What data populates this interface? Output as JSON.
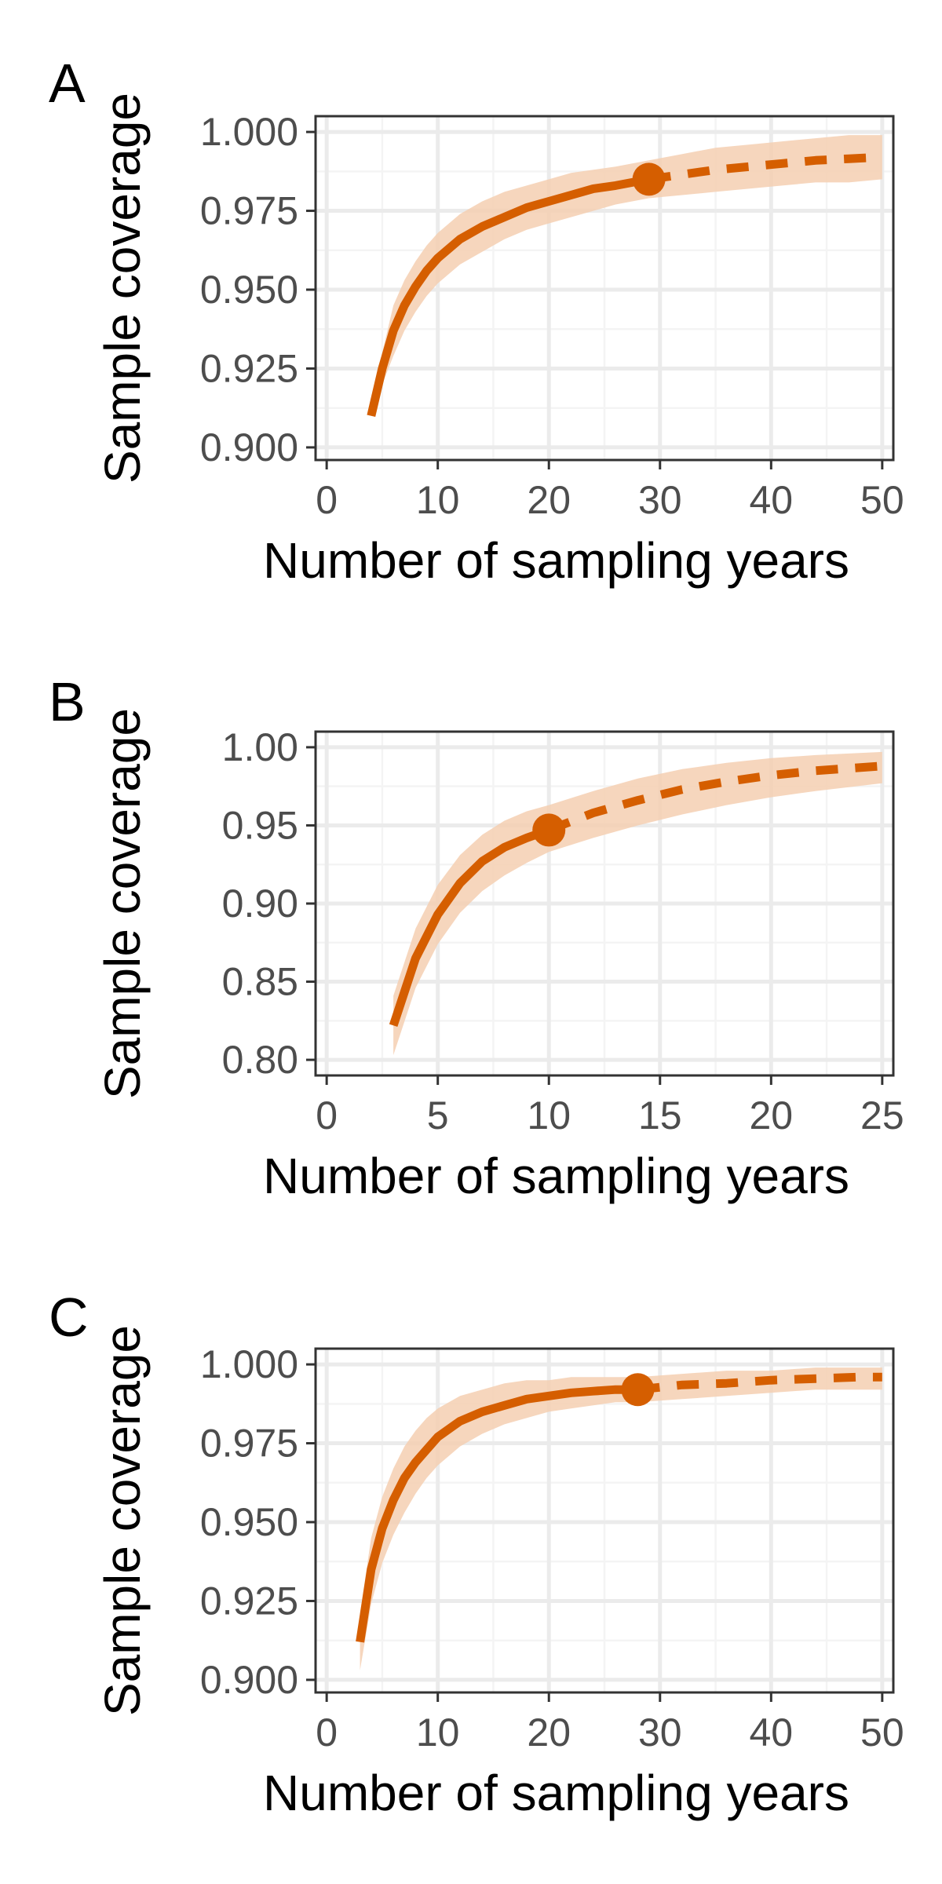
{
  "colors": {
    "line": "#D55E00",
    "ribbon": "#F5CFB2",
    "grid_major": "#EBEBEB",
    "grid_minor": "#F4F4F4",
    "frame": "#333333",
    "tick_text": "#4D4D4D"
  },
  "chart_data": [
    {
      "type": "line",
      "panel_label": "A",
      "xlabel": "Number of sampling years",
      "ylabel": "Sample coverage",
      "xlim": [
        -1,
        51
      ],
      "ylim": [
        0.896,
        1.005
      ],
      "x_ticks": [
        0,
        10,
        20,
        30,
        40,
        50
      ],
      "x_tick_labels": [
        "0",
        "10",
        "20",
        "30",
        "40",
        "50"
      ],
      "y_ticks": [
        0.9,
        0.925,
        0.95,
        0.975,
        1.0
      ],
      "y_tick_labels": [
        "0.900",
        "0.925",
        "0.950",
        "0.975",
        "1.000"
      ],
      "grid": true,
      "observed_point": {
        "x": 29,
        "y": 0.985
      },
      "series": [
        {
          "style": "solid",
          "x": [
            4,
            5,
            6,
            7,
            8,
            9,
            10,
            12,
            14,
            16,
            18,
            20,
            22,
            24,
            26,
            29
          ],
          "y": [
            0.91,
            0.925,
            0.937,
            0.945,
            0.951,
            0.956,
            0.96,
            0.966,
            0.97,
            0.973,
            0.976,
            0.978,
            0.98,
            0.982,
            0.983,
            0.985
          ],
          "lower": [
            0.91,
            0.92,
            0.929,
            0.937,
            0.943,
            0.948,
            0.952,
            0.958,
            0.962,
            0.966,
            0.969,
            0.971,
            0.973,
            0.975,
            0.977,
            0.979
          ],
          "upper": [
            0.91,
            0.93,
            0.945,
            0.953,
            0.959,
            0.964,
            0.968,
            0.974,
            0.978,
            0.981,
            0.983,
            0.985,
            0.987,
            0.988,
            0.989,
            0.991
          ]
        },
        {
          "style": "dashed",
          "x": [
            29,
            32,
            35,
            38,
            41,
            44,
            47,
            50
          ],
          "y": [
            0.985,
            0.9865,
            0.988,
            0.989,
            0.99,
            0.991,
            0.9915,
            0.992
          ],
          "lower": [
            0.979,
            0.98,
            0.981,
            0.982,
            0.983,
            0.984,
            0.984,
            0.985
          ],
          "upper": [
            0.991,
            0.993,
            0.995,
            0.996,
            0.997,
            0.998,
            0.999,
            0.999
          ]
        }
      ]
    },
    {
      "type": "line",
      "panel_label": "B",
      "xlabel": "Number of sampling years",
      "ylabel": "Sample coverage",
      "xlim": [
        -0.5,
        25.5
      ],
      "ylim": [
        0.79,
        1.01
      ],
      "x_ticks": [
        0,
        5,
        10,
        15,
        20,
        25
      ],
      "x_tick_labels": [
        "0",
        "5",
        "10",
        "15",
        "20",
        "25"
      ],
      "y_ticks": [
        0.8,
        0.85,
        0.9,
        0.95,
        1.0
      ],
      "y_tick_labels": [
        "0.80",
        "0.85",
        "0.90",
        "0.95",
        "1.00"
      ],
      "grid": true,
      "observed_point": {
        "x": 10,
        "y": 0.947
      },
      "series": [
        {
          "style": "solid",
          "x": [
            3,
            4,
            5,
            6,
            7,
            8,
            9,
            10
          ],
          "y": [
            0.822,
            0.865,
            0.893,
            0.913,
            0.927,
            0.936,
            0.942,
            0.947
          ],
          "lower": [
            0.803,
            0.846,
            0.874,
            0.894,
            0.908,
            0.918,
            0.926,
            0.933
          ],
          "upper": [
            0.841,
            0.884,
            0.912,
            0.931,
            0.944,
            0.953,
            0.959,
            0.963
          ]
        },
        {
          "style": "dashed",
          "x": [
            10,
            12,
            14,
            16,
            18,
            20,
            22,
            25
          ],
          "y": [
            0.947,
            0.958,
            0.966,
            0.973,
            0.978,
            0.982,
            0.985,
            0.988
          ],
          "lower": [
            0.933,
            0.942,
            0.95,
            0.957,
            0.963,
            0.968,
            0.972,
            0.977
          ],
          "upper": [
            0.963,
            0.972,
            0.98,
            0.986,
            0.99,
            0.993,
            0.995,
            0.997
          ]
        }
      ]
    },
    {
      "type": "line",
      "panel_label": "C",
      "xlabel": "Number of sampling years",
      "ylabel": "Sample coverage",
      "xlim": [
        -1,
        51
      ],
      "ylim": [
        0.896,
        1.005
      ],
      "x_ticks": [
        0,
        10,
        20,
        30,
        40,
        50
      ],
      "x_tick_labels": [
        "0",
        "10",
        "20",
        "30",
        "40",
        "50"
      ],
      "y_ticks": [
        0.9,
        0.925,
        0.95,
        0.975,
        1.0
      ],
      "y_tick_labels": [
        "0.900",
        "0.925",
        "0.950",
        "0.975",
        "1.000"
      ],
      "grid": true,
      "observed_point": {
        "x": 28,
        "y": 0.992
      },
      "series": [
        {
          "style": "solid",
          "x": [
            3,
            4,
            5,
            6,
            7,
            8,
            9,
            10,
            12,
            14,
            16,
            18,
            20,
            22,
            24,
            26,
            28
          ],
          "y": [
            0.912,
            0.935,
            0.948,
            0.957,
            0.964,
            0.969,
            0.973,
            0.977,
            0.982,
            0.985,
            0.987,
            0.989,
            0.99,
            0.991,
            0.9915,
            0.992,
            0.992
          ],
          "lower": [
            0.903,
            0.924,
            0.937,
            0.946,
            0.953,
            0.959,
            0.964,
            0.968,
            0.974,
            0.978,
            0.981,
            0.983,
            0.985,
            0.986,
            0.987,
            0.988,
            0.988
          ],
          "upper": [
            0.921,
            0.945,
            0.958,
            0.967,
            0.974,
            0.979,
            0.983,
            0.986,
            0.99,
            0.992,
            0.994,
            0.995,
            0.995,
            0.996,
            0.996,
            0.996,
            0.996
          ]
        },
        {
          "style": "dashed",
          "x": [
            28,
            32,
            36,
            40,
            44,
            48,
            50
          ],
          "y": [
            0.992,
            0.9935,
            0.994,
            0.995,
            0.9955,
            0.996,
            0.996
          ],
          "lower": [
            0.988,
            0.989,
            0.99,
            0.991,
            0.992,
            0.992,
            0.992
          ],
          "upper": [
            0.996,
            0.997,
            0.998,
            0.998,
            0.999,
            0.999,
            0.999
          ]
        }
      ]
    }
  ]
}
